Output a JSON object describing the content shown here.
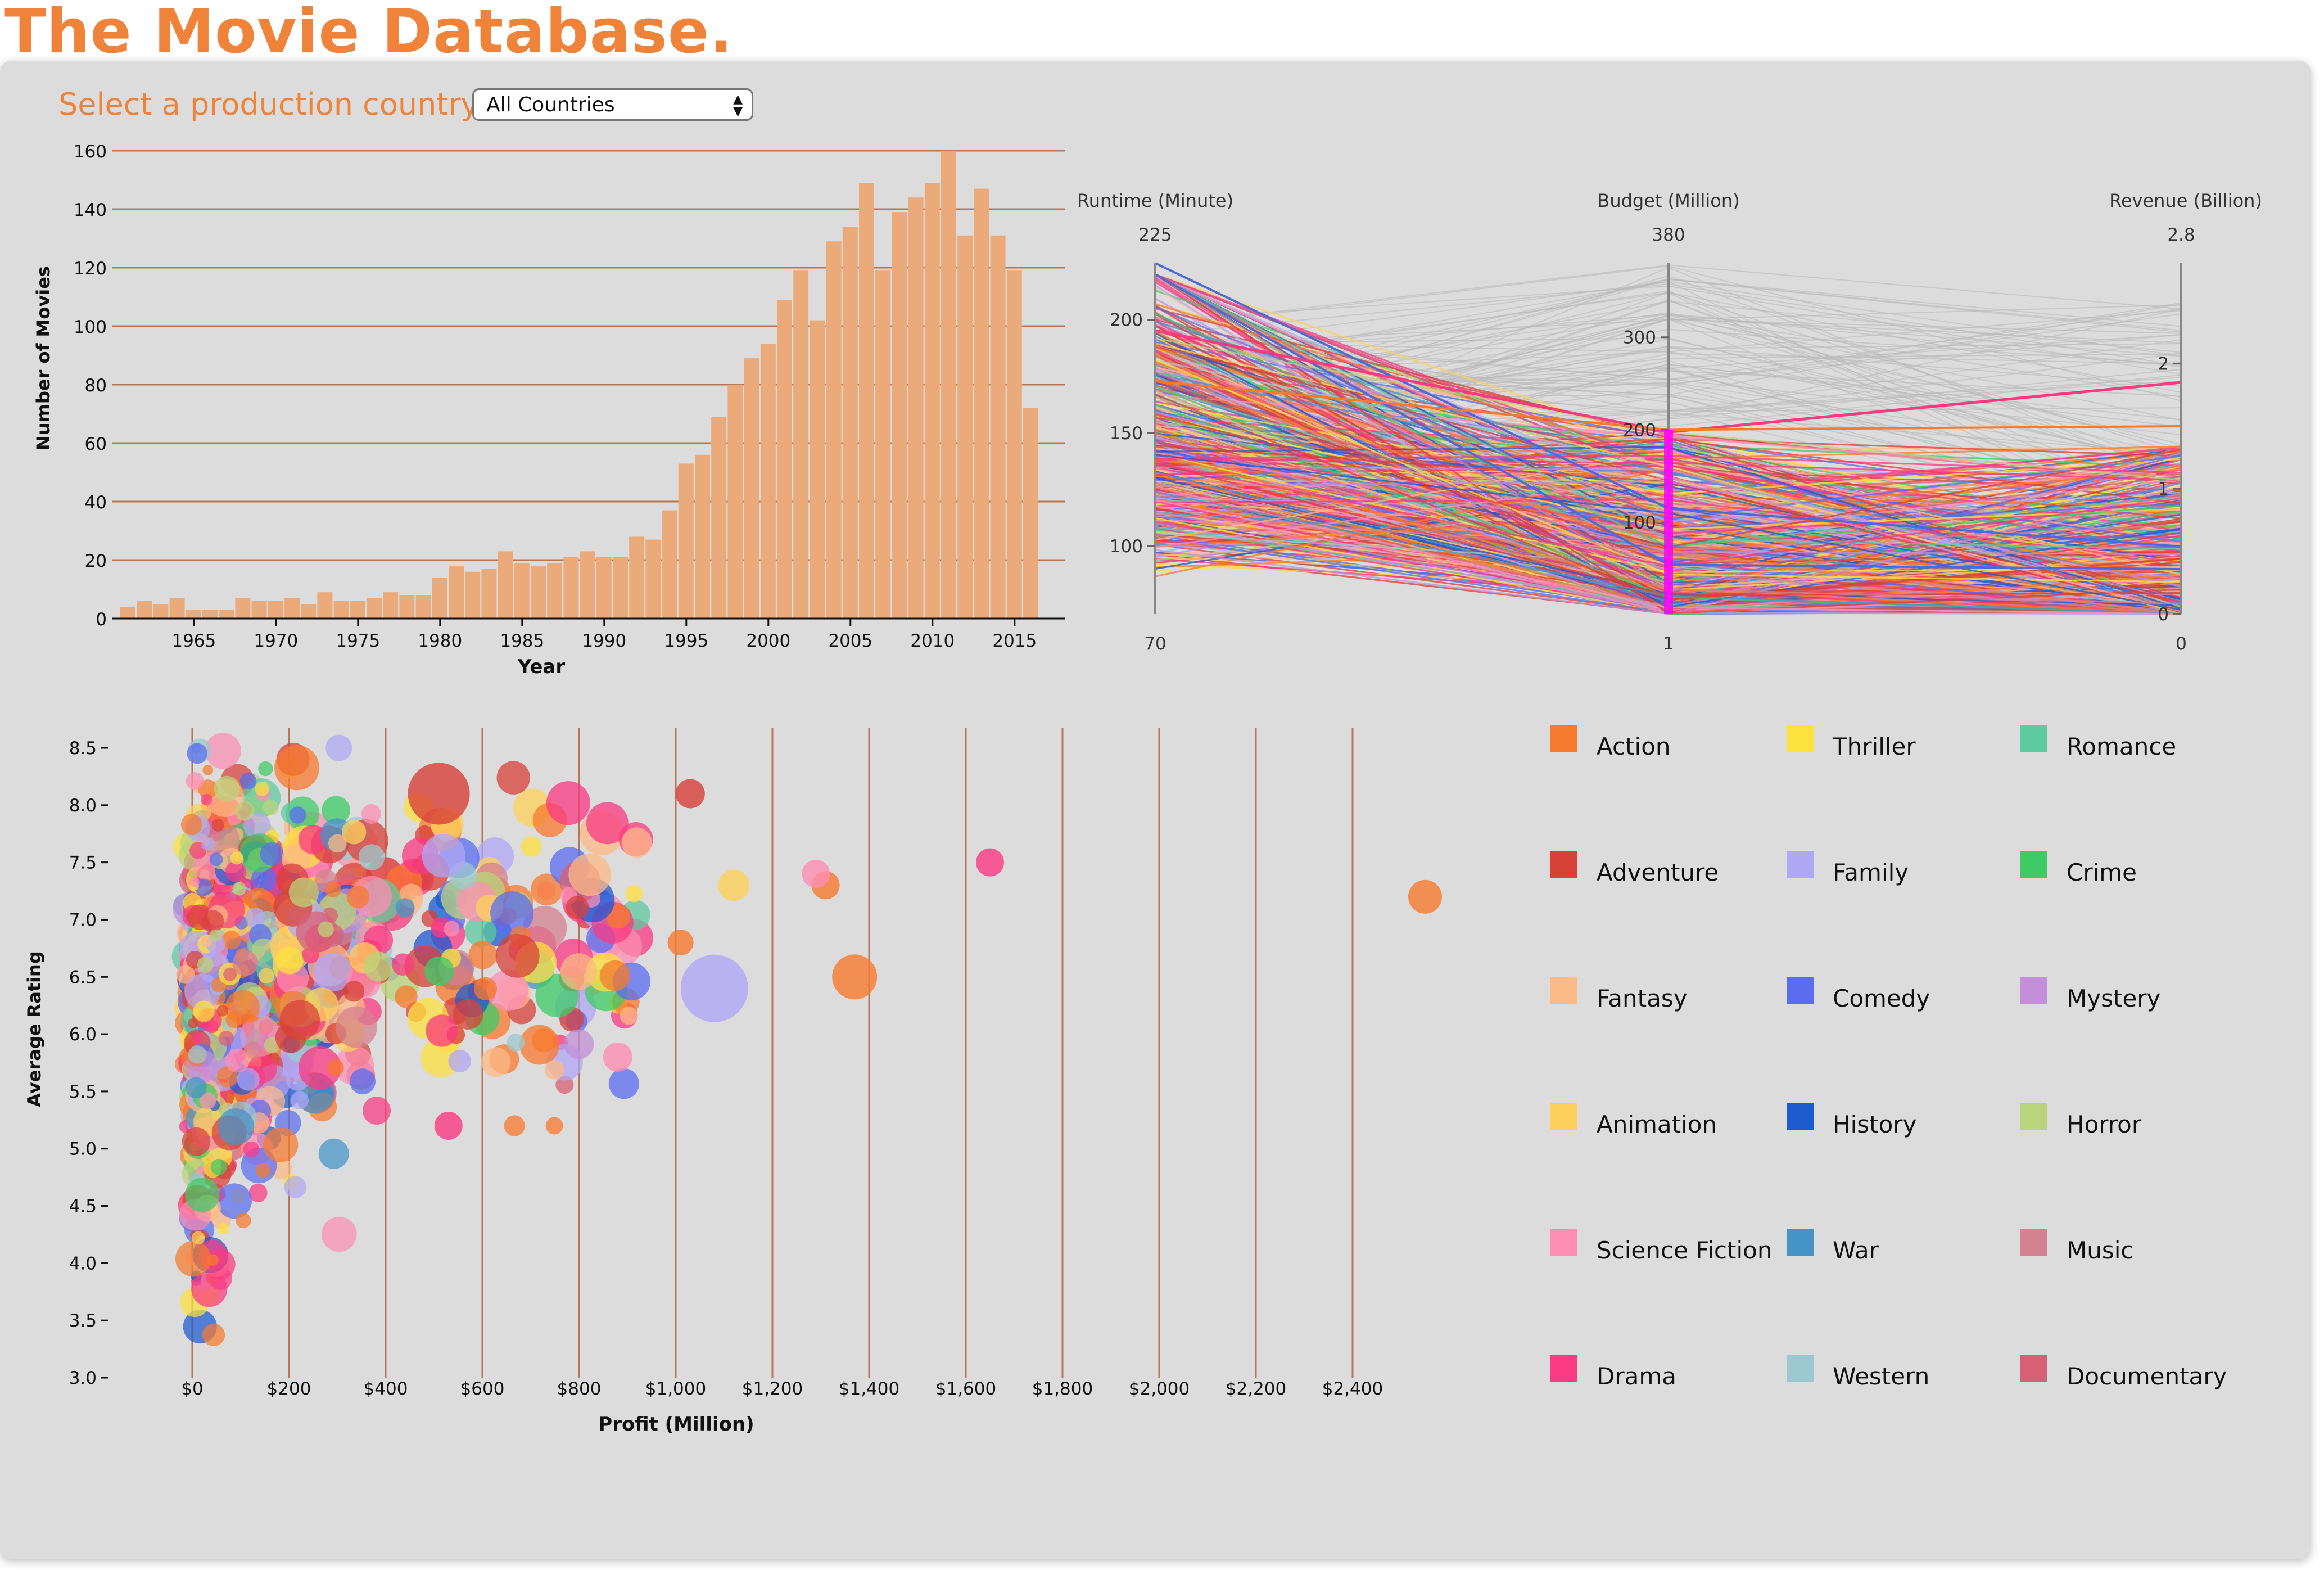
{
  "page": {
    "title": "The Movie Database.",
    "country_label": "Select a production country :",
    "country_selected": "All Countries"
  },
  "chart_data": [
    {
      "type": "bar",
      "xlabel": "Year",
      "ylabel": "Number of Movies",
      "ylim": [
        0,
        160
      ],
      "y_ticks": [
        0,
        20,
        40,
        60,
        80,
        100,
        120,
        140,
        160
      ],
      "x_ticks": [
        1965,
        1970,
        1975,
        1980,
        1985,
        1990,
        1995,
        2000,
        2005,
        2010,
        2015
      ],
      "grid": true,
      "categories": [
        1961,
        1962,
        1963,
        1964,
        1965,
        1966,
        1967,
        1968,
        1969,
        1970,
        1971,
        1972,
        1973,
        1974,
        1975,
        1976,
        1977,
        1978,
        1979,
        1980,
        1981,
        1982,
        1983,
        1984,
        1985,
        1986,
        1987,
        1988,
        1989,
        1990,
        1991,
        1992,
        1993,
        1994,
        1995,
        1996,
        1997,
        1998,
        1999,
        2000,
        2001,
        2002,
        2003,
        2004,
        2005,
        2006,
        2007,
        2008,
        2009,
        2010,
        2011,
        2012,
        2013,
        2014,
        2015,
        2016,
        2017
      ],
      "values": [
        4,
        6,
        5,
        7,
        3,
        3,
        3,
        7,
        6,
        6,
        7,
        5,
        9,
        6,
        6,
        7,
        9,
        8,
        8,
        14,
        18,
        16,
        17,
        23,
        19,
        18,
        19,
        21,
        23,
        21,
        21,
        28,
        27,
        37,
        53,
        56,
        69,
        80,
        89,
        94,
        109,
        119,
        102,
        129,
        134,
        149,
        119,
        139,
        144,
        149,
        160,
        131,
        147,
        131,
        119,
        72,
        0
      ]
    },
    {
      "type": "parallel_coordinates",
      "axes": [
        {
          "label": "Runtime (Minute)",
          "min": 70,
          "max": 225,
          "ticks": [
            100,
            150,
            200
          ]
        },
        {
          "label": "Budget (Million)",
          "min": 1,
          "max": 380,
          "ticks": [
            100,
            200,
            300
          ]
        },
        {
          "label": "Revenue (Billion)",
          "min": 0,
          "max": 2.8,
          "ticks": [
            0,
            1,
            2
          ]
        }
      ],
      "brush": {
        "axis": "Budget (Million)",
        "range": [
          1,
          200
        ]
      },
      "highlight_color": "#ff00ff"
    },
    {
      "type": "scatter",
      "xlabel": "Profit (Million)",
      "ylabel": "Average Rating",
      "xlim": [
        -25,
        2550
      ],
      "ylim": [
        3.0,
        8.6
      ],
      "x_ticks": [
        0,
        200,
        400,
        600,
        800,
        1000,
        1200,
        1400,
        1600,
        1800,
        2000,
        2200,
        2400
      ],
      "x_tick_labels": [
        "$0",
        "$200",
        "$400",
        "$600",
        "$800",
        "$1,000",
        "$1,200",
        "$1,400",
        "$1,600",
        "$1,800",
        "$2,000",
        "$2,200",
        "$2,400"
      ],
      "y_ticks": [
        3.0,
        3.5,
        4.0,
        4.5,
        5.0,
        5.5,
        6.0,
        6.5,
        7.0,
        7.5,
        8.0,
        8.5
      ],
      "y_tick_labels": [
        "3.0",
        "3.5",
        "4.0",
        "4.5",
        "5.0",
        "5.5",
        "6.0",
        "6.5",
        "7.0",
        "7.5",
        "8.0",
        "8.5"
      ],
      "notable_points": [
        {
          "x": 2550,
          "y": 7.2,
          "genre": "Action",
          "size": 3
        },
        {
          "x": 1650,
          "y": 7.5,
          "genre": "Drama",
          "size": 2.5
        },
        {
          "x": 1370,
          "y": 6.5,
          "genre": "Action",
          "size": 4
        },
        {
          "x": 1080,
          "y": 6.4,
          "genre": "Family",
          "size": 6
        },
        {
          "x": 1310,
          "y": 7.3,
          "genre": "Action",
          "size": 2.5
        },
        {
          "x": 1290,
          "y": 7.4,
          "genre": "Science Fiction",
          "size": 2.5
        },
        {
          "x": 1120,
          "y": 7.3,
          "genre": "Animation",
          "size": 2.8
        },
        {
          "x": 1030,
          "y": 8.1,
          "genre": "Adventure",
          "size": 2.6
        },
        {
          "x": 1010,
          "y": 6.8,
          "genre": "Action",
          "size": 2.3
        },
        {
          "x": 510,
          "y": 8.1,
          "genre": "Adventure",
          "size": 5.5
        },
        {
          "x": 530,
          "y": 5.2,
          "genre": "Drama",
          "size": 2.5
        },
        {
          "x": 880,
          "y": 5.8,
          "genre": "Science Fiction",
          "size": 2.6
        }
      ]
    }
  ],
  "legend": {
    "items": [
      {
        "label": "Action",
        "color": "#f77a2e"
      },
      {
        "label": "Thriller",
        "color": "#fde13d"
      },
      {
        "label": "Romance",
        "color": "#5ecba1"
      },
      {
        "label": "Adventure",
        "color": "#d8413a"
      },
      {
        "label": "Family",
        "color": "#b0a7f5"
      },
      {
        "label": "Crime",
        "color": "#3ecb66"
      },
      {
        "label": "Fantasy",
        "color": "#fcba86"
      },
      {
        "label": "Comedy",
        "color": "#5a6df0"
      },
      {
        "label": "Mystery",
        "color": "#c28fd8"
      },
      {
        "label": "Animation",
        "color": "#fdd159"
      },
      {
        "label": "History",
        "color": "#1d5ad0"
      },
      {
        "label": "Horror",
        "color": "#b9d47a"
      },
      {
        "label": "Science Fiction",
        "color": "#fc8fb3"
      },
      {
        "label": "War",
        "color": "#4594c8"
      },
      {
        "label": "Music",
        "color": "#d4828f"
      },
      {
        "label": "Drama",
        "color": "#fa3a82"
      },
      {
        "label": "Western",
        "color": "#9cc9cf"
      },
      {
        "label": "Documentary",
        "color": "#d86076"
      }
    ]
  },
  "colors": {
    "title": "#f0833a",
    "bar": "#eaaa79",
    "gridline": "#b57755",
    "panel": "#dcdcdc"
  }
}
